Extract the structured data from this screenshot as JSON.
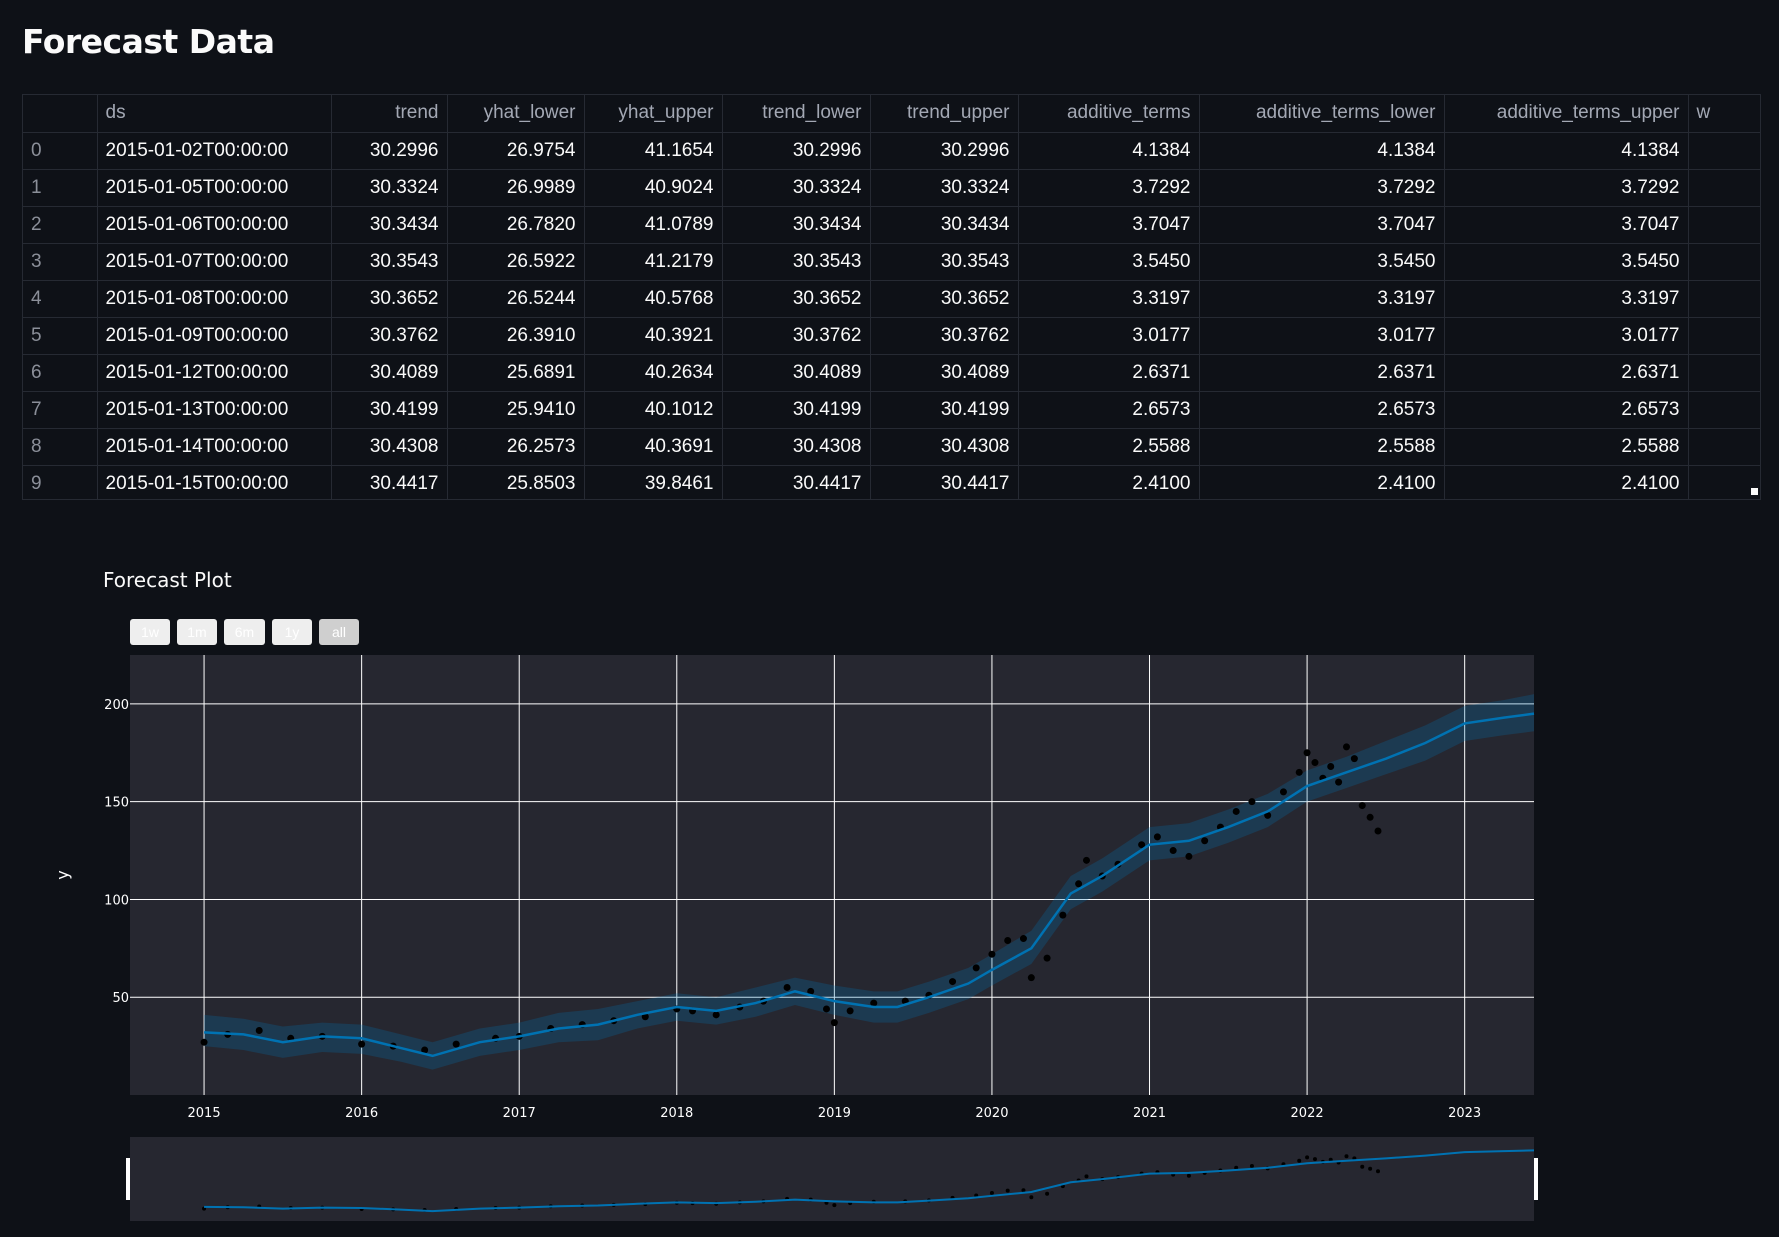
{
  "page": {
    "title": "Forecast Data"
  },
  "table": {
    "columns": [
      "",
      "ds",
      "trend",
      "yhat_lower",
      "yhat_upper",
      "trend_lower",
      "trend_upper",
      "additive_terms",
      "additive_terms_lower",
      "additive_terms_upper",
      "w"
    ],
    "rows": [
      [
        "0",
        "2015-01-02T00:00:00",
        "30.2996",
        "26.9754",
        "41.1654",
        "30.2996",
        "30.2996",
        "4.1384",
        "4.1384",
        "4.1384"
      ],
      [
        "1",
        "2015-01-05T00:00:00",
        "30.3324",
        "26.9989",
        "40.9024",
        "30.3324",
        "30.3324",
        "3.7292",
        "3.7292",
        "3.7292"
      ],
      [
        "2",
        "2015-01-06T00:00:00",
        "30.3434",
        "26.7820",
        "41.0789",
        "30.3434",
        "30.3434",
        "3.7047",
        "3.7047",
        "3.7047"
      ],
      [
        "3",
        "2015-01-07T00:00:00",
        "30.3543",
        "26.5922",
        "41.2179",
        "30.3543",
        "30.3543",
        "3.5450",
        "3.5450",
        "3.5450"
      ],
      [
        "4",
        "2015-01-08T00:00:00",
        "30.3652",
        "26.5244",
        "40.5768",
        "30.3652",
        "30.3652",
        "3.3197",
        "3.3197",
        "3.3197"
      ],
      [
        "5",
        "2015-01-09T00:00:00",
        "30.3762",
        "26.3910",
        "40.3921",
        "30.3762",
        "30.3762",
        "3.0177",
        "3.0177",
        "3.0177"
      ],
      [
        "6",
        "2015-01-12T00:00:00",
        "30.4089",
        "25.6891",
        "40.2634",
        "30.4089",
        "30.4089",
        "2.6371",
        "2.6371",
        "2.6371"
      ],
      [
        "7",
        "2015-01-13T00:00:00",
        "30.4199",
        "25.9410",
        "40.1012",
        "30.4199",
        "30.4199",
        "2.6573",
        "2.6573",
        "2.6573"
      ],
      [
        "8",
        "2015-01-14T00:00:00",
        "30.4308",
        "26.2573",
        "40.3691",
        "30.4308",
        "30.4308",
        "2.5588",
        "2.5588",
        "2.5588"
      ],
      [
        "9",
        "2015-01-15T00:00:00",
        "30.4417",
        "25.8503",
        "39.8461",
        "30.4417",
        "30.4417",
        "2.4100",
        "2.4100",
        "2.4100"
      ]
    ]
  },
  "plot": {
    "title": "Forecast Plot",
    "range_buttons": [
      {
        "label": "1w",
        "active": false
      },
      {
        "label": "1m",
        "active": false
      },
      {
        "label": "6m",
        "active": false
      },
      {
        "label": "1y",
        "active": false
      },
      {
        "label": "all",
        "active": true
      }
    ]
  },
  "colors": {
    "background": "#0e1117",
    "plot_background": "#262730",
    "grid": "#ffffff",
    "forecast_line": "#0072b2",
    "forecast_band": "#0072b2",
    "actual_points": "#000000"
  },
  "chart_data": {
    "type": "line",
    "title": "",
    "xlabel": "",
    "ylabel": "y",
    "xlim": [
      2014.53,
      2023.44
    ],
    "ylim": [
      0,
      225
    ],
    "x_ticks": [
      "2015",
      "2016",
      "2017",
      "2018",
      "2019",
      "2020",
      "2021",
      "2022",
      "2023"
    ],
    "y_ticks": [
      "50",
      "100",
      "150",
      "200"
    ],
    "grid": true,
    "legend": "none",
    "has_range_slider": true,
    "series": [
      {
        "role": "forecast",
        "x": [
          2015.0,
          2015.25,
          2015.5,
          2015.75,
          2016.0,
          2016.25,
          2016.45,
          2016.75,
          2017.0,
          2017.25,
          2017.5,
          2017.75,
          2018.0,
          2018.25,
          2018.5,
          2018.75,
          2019.0,
          2019.25,
          2019.4,
          2019.6,
          2019.85,
          2020.0,
          2020.25,
          2020.5,
          2020.7,
          2021.0,
          2021.25,
          2021.5,
          2021.75,
          2022.0,
          2022.25,
          2022.5,
          2022.75,
          2023.0,
          2023.25,
          2023.44
        ],
        "y": [
          32,
          31,
          27,
          30,
          29,
          24,
          20,
          27,
          30,
          34,
          36,
          41,
          45,
          43,
          47,
          53,
          48,
          45,
          45,
          50,
          57,
          64,
          75,
          103,
          112,
          128,
          130,
          137,
          145,
          158,
          165,
          172,
          180,
          190,
          193,
          195
        ]
      },
      {
        "role": "forecast_upper",
        "x": [
          2015.0,
          2015.25,
          2015.5,
          2015.75,
          2016.0,
          2016.25,
          2016.45,
          2016.75,
          2017.0,
          2017.25,
          2017.5,
          2017.75,
          2018.0,
          2018.25,
          2018.5,
          2018.75,
          2019.0,
          2019.25,
          2019.4,
          2019.6,
          2019.85,
          2020.0,
          2020.25,
          2020.5,
          2020.7,
          2021.0,
          2021.25,
          2021.5,
          2021.75,
          2022.0,
          2022.25,
          2022.5,
          2022.75,
          2023.0,
          2023.25,
          2023.44
        ],
        "y": [
          41,
          39,
          35,
          37,
          36,
          31,
          27,
          34,
          37,
          42,
          44,
          48,
          52,
          50,
          55,
          60,
          56,
          53,
          53,
          58,
          65,
          72,
          84,
          112,
          121,
          137,
          139,
          146,
          154,
          166,
          173,
          181,
          189,
          199,
          202,
          205
        ]
      },
      {
        "role": "forecast_lower",
        "x": [
          2015.0,
          2015.25,
          2015.5,
          2015.75,
          2016.0,
          2016.25,
          2016.45,
          2016.75,
          2017.0,
          2017.25,
          2017.5,
          2017.75,
          2018.0,
          2018.25,
          2018.5,
          2018.75,
          2019.0,
          2019.25,
          2019.4,
          2019.6,
          2019.85,
          2020.0,
          2020.25,
          2020.5,
          2020.7,
          2021.0,
          2021.25,
          2021.5,
          2021.75,
          2022.0,
          2022.25,
          2022.5,
          2022.75,
          2023.0,
          2023.25,
          2023.44
        ],
        "y": [
          25,
          23,
          19,
          22,
          21,
          17,
          13,
          20,
          23,
          27,
          28,
          34,
          38,
          36,
          40,
          46,
          41,
          37,
          37,
          42,
          49,
          56,
          67,
          95,
          104,
          120,
          122,
          129,
          137,
          150,
          157,
          164,
          171,
          181,
          184,
          186
        ]
      },
      {
        "role": "actual",
        "x": [
          2015.0,
          2015.15,
          2015.35,
          2015.55,
          2015.75,
          2016.0,
          2016.2,
          2016.4,
          2016.6,
          2016.85,
          2017.0,
          2017.2,
          2017.4,
          2017.6,
          2017.8,
          2018.0,
          2018.1,
          2018.25,
          2018.4,
          2018.55,
          2018.7,
          2018.85,
          2018.95,
          2019.0,
          2019.1,
          2019.25,
          2019.45,
          2019.6,
          2019.75,
          2019.9,
          2020.0,
          2020.1,
          2020.2,
          2020.25,
          2020.35,
          2020.45,
          2020.55,
          2020.6,
          2020.7,
          2020.8,
          2020.95,
          2021.05,
          2021.15,
          2021.25,
          2021.35,
          2021.45,
          2021.55,
          2021.65,
          2021.75,
          2021.85,
          2021.95,
          2022.0,
          2022.05,
          2022.1,
          2022.15,
          2022.2,
          2022.25,
          2022.3,
          2022.35,
          2022.4,
          2022.45
        ],
        "y": [
          27,
          31,
          33,
          29,
          30,
          26,
          25,
          23,
          26,
          29,
          30,
          34,
          36,
          38,
          40,
          44,
          43,
          41,
          45,
          48,
          55,
          53,
          44,
          37,
          43,
          47,
          48,
          51,
          58,
          65,
          72,
          79,
          80,
          60,
          70,
          92,
          108,
          120,
          112,
          118,
          128,
          132,
          125,
          122,
          130,
          137,
          145,
          150,
          143,
          155,
          165,
          175,
          170,
          162,
          168,
          160,
          178,
          172,
          148,
          142,
          135
        ]
      }
    ]
  }
}
